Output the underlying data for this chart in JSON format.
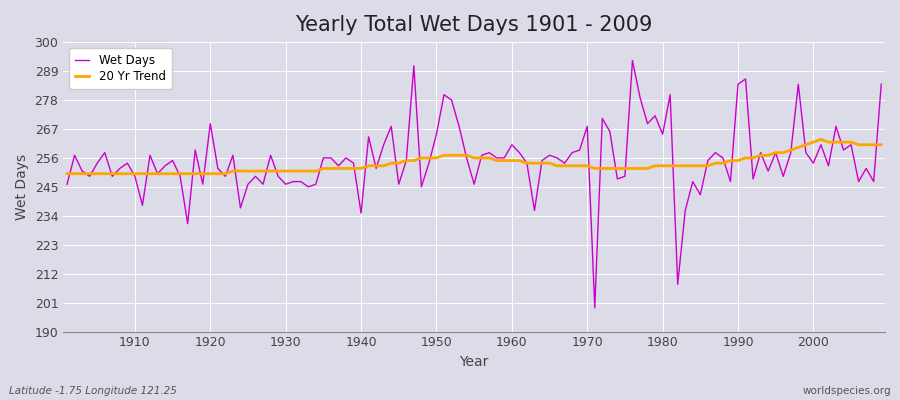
{
  "title": "Yearly Total Wet Days 1901 - 2009",
  "xlabel": "Year",
  "ylabel": "Wet Days",
  "years": [
    1901,
    1902,
    1903,
    1904,
    1905,
    1906,
    1907,
    1908,
    1909,
    1910,
    1911,
    1912,
    1913,
    1914,
    1915,
    1916,
    1917,
    1918,
    1919,
    1920,
    1921,
    1922,
    1923,
    1924,
    1925,
    1926,
    1927,
    1928,
    1929,
    1930,
    1931,
    1932,
    1933,
    1934,
    1935,
    1936,
    1937,
    1938,
    1939,
    1940,
    1941,
    1942,
    1943,
    1944,
    1945,
    1946,
    1947,
    1948,
    1949,
    1950,
    1951,
    1952,
    1953,
    1954,
    1955,
    1956,
    1957,
    1958,
    1959,
    1960,
    1961,
    1962,
    1963,
    1964,
    1965,
    1966,
    1967,
    1968,
    1969,
    1970,
    1971,
    1972,
    1973,
    1974,
    1975,
    1976,
    1977,
    1978,
    1979,
    1980,
    1981,
    1982,
    1983,
    1984,
    1985,
    1986,
    1987,
    1988,
    1989,
    1990,
    1991,
    1992,
    1993,
    1994,
    1995,
    1996,
    1997,
    1998,
    1999,
    2000,
    2001,
    2002,
    2003,
    2004,
    2005,
    2006,
    2007,
    2008,
    2009
  ],
  "wet_days": [
    246,
    257,
    251,
    249,
    254,
    258,
    249,
    252,
    254,
    249,
    238,
    257,
    250,
    253,
    255,
    249,
    231,
    259,
    246,
    269,
    252,
    249,
    257,
    237,
    246,
    249,
    246,
    257,
    249,
    246,
    247,
    247,
    245,
    246,
    256,
    256,
    253,
    256,
    254,
    235,
    264,
    252,
    261,
    268,
    246,
    255,
    291,
    245,
    254,
    265,
    280,
    278,
    268,
    256,
    246,
    257,
    258,
    256,
    256,
    261,
    258,
    254,
    236,
    255,
    257,
    256,
    254,
    258,
    259,
    268,
    199,
    271,
    266,
    248,
    249,
    293,
    279,
    269,
    272,
    265,
    280,
    208,
    236,
    247,
    242,
    255,
    258,
    256,
    247,
    284,
    286,
    248,
    258,
    251,
    258,
    249,
    258,
    284,
    258,
    254,
    261,
    253,
    268,
    259,
    261,
    247,
    252,
    247,
    284
  ],
  "trend": [
    250,
    250,
    250,
    250,
    250,
    250,
    250,
    250,
    250,
    250,
    250,
    250,
    250,
    250,
    250,
    250,
    250,
    250,
    250,
    250,
    250,
    250,
    251,
    251,
    251,
    251,
    251,
    251,
    251,
    251,
    251,
    251,
    251,
    251,
    252,
    252,
    252,
    252,
    252,
    252,
    253,
    253,
    253,
    254,
    254,
    255,
    255,
    256,
    256,
    256,
    257,
    257,
    257,
    257,
    256,
    256,
    256,
    255,
    255,
    255,
    255,
    254,
    254,
    254,
    254,
    253,
    253,
    253,
    253,
    253,
    252,
    252,
    252,
    252,
    252,
    252,
    252,
    252,
    253,
    253,
    253,
    253,
    253,
    253,
    253,
    253,
    254,
    254,
    255,
    255,
    256,
    256,
    257,
    257,
    258,
    258,
    259,
    260,
    261,
    262,
    263,
    262,
    262,
    262,
    262,
    261,
    261,
    261,
    261
  ],
  "wet_days_color": "#CC00CC",
  "trend_color": "#FFA500",
  "background_color": "#DCDCE8",
  "grid_color": "#FFFFFF",
  "ylim": [
    190,
    300
  ],
  "yticks": [
    190,
    201,
    212,
    223,
    234,
    245,
    256,
    267,
    278,
    289,
    300
  ],
  "xticks": [
    1910,
    1920,
    1930,
    1940,
    1950,
    1960,
    1970,
    1980,
    1990,
    2000
  ],
  "title_fontsize": 15,
  "axis_label_fontsize": 10,
  "tick_fontsize": 9,
  "subtitle": "Latitude -1.75 Longitude 121.25",
  "watermark": "worldspecies.org"
}
